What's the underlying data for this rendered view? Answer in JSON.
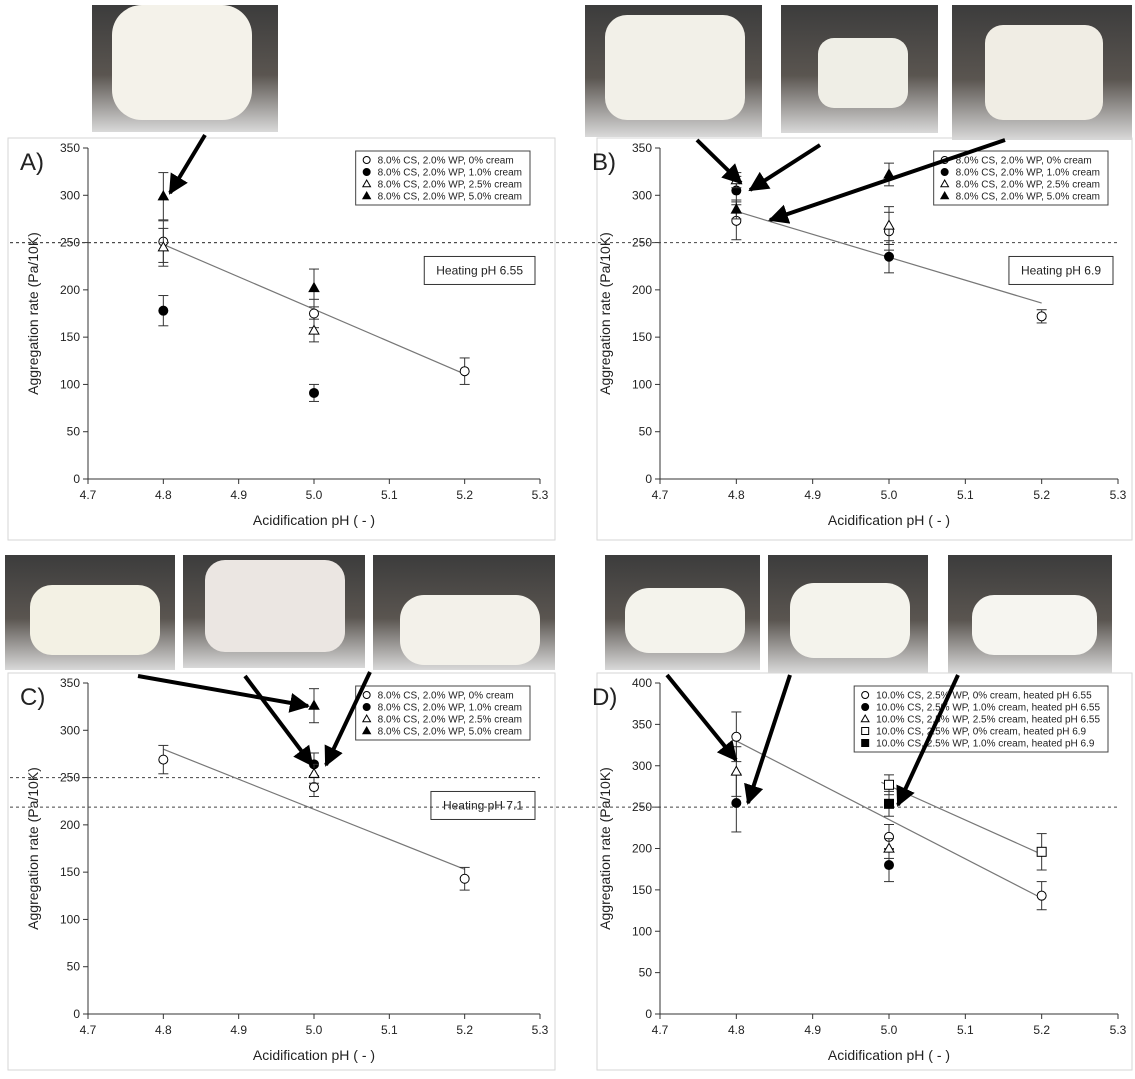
{
  "chart_data": [
    {
      "type": "scatter",
      "panel_label": "A)",
      "annotation": "Heating pH 6.55",
      "y_label": "Aggregation rate (Pa/10K)",
      "x_label": "Acidification pH ( - )",
      "x": [
        4.8,
        5.0,
        5.2
      ],
      "xlim": [
        4.7,
        5.3
      ],
      "xticks": [
        4.7,
        4.8,
        4.9,
        {
          "value": 5.0,
          "label": "5.0"
        },
        5.1,
        5.2,
        5.3
      ],
      "ylim": [
        0,
        350
      ],
      "yticks": [
        0,
        50,
        100,
        150,
        200,
        250,
        300,
        350
      ],
      "hline": 250,
      "legend": "upper right",
      "series": [
        {
          "name": "8.0% CS, 2.0% WP, 0% cream",
          "marker": "circle",
          "filled": false,
          "color": "#000000",
          "values": [
            251,
            175,
            114
          ],
          "errors": [
            22,
            15,
            14
          ]
        },
        {
          "name": "8.0% CS, 2.0% WP, 1.0% cream",
          "marker": "circle",
          "filled": true,
          "color": "#000000",
          "values": [
            178,
            91,
            null
          ],
          "errors": [
            16,
            9,
            null
          ]
        },
        {
          "name": "8.0% CS, 2.0% WP, 2.5% cream",
          "marker": "triangle",
          "filled": false,
          "color": "#000000",
          "values": [
            245,
            157,
            null
          ],
          "errors": [
            20,
            12,
            null
          ]
        },
        {
          "name": "8.0% CS, 2.0% WP, 5.0% cream",
          "marker": "triangle",
          "filled": true,
          "color": "#000000",
          "values": [
            299,
            202,
            null
          ],
          "errors": [
            25,
            20,
            null
          ]
        }
      ],
      "trendlines": [
        {
          "x": [
            4.8,
            5.2
          ],
          "y": [
            248,
            111
          ]
        }
      ]
    },
    {
      "type": "scatter",
      "panel_label": "B)",
      "annotation": "Heating pH 6.9",
      "y_label": "Aggregation rate (Pa/10K)",
      "x_label": "Acidification pH ( - )",
      "x": [
        4.8,
        5.0,
        5.2
      ],
      "xlim": [
        4.7,
        5.3
      ],
      "xticks": [
        4.7,
        4.8,
        4.9,
        {
          "value": 5.0,
          "label": "5.0"
        },
        5.1,
        5.2,
        5.3
      ],
      "ylim": [
        0,
        350
      ],
      "yticks": [
        0,
        50,
        100,
        150,
        200,
        250,
        300,
        350
      ],
      "hline": 250,
      "legend": "upper right",
      "series": [
        {
          "name": "8.0% CS, 2.0% WP, 0% cream",
          "marker": "circle",
          "filled": false,
          "color": "#000000",
          "values": [
            273,
            262,
            172
          ],
          "errors": [
            20,
            20,
            7
          ]
        },
        {
          "name": "8.0% CS, 2.0% WP, 1.0% cream",
          "marker": "circle",
          "filled": true,
          "color": "#000000",
          "values": [
            305,
            235,
            null
          ],
          "errors": [
            15,
            17,
            null
          ]
        },
        {
          "name": "8.0% CS, 2.0% WP, 2.5% cream",
          "marker": "triangle",
          "filled": false,
          "color": "#000000",
          "values": [
            316,
            268,
            null
          ],
          "errors": [
            8,
            20,
            null
          ]
        },
        {
          "name": "8.0% CS, 2.0% WP, 5.0% cream",
          "marker": "triangle",
          "filled": true,
          "color": "#000000",
          "values": [
            285,
            322,
            null
          ],
          "errors": [
            10,
            12,
            null
          ]
        }
      ],
      "trendlines": [
        {
          "x": [
            4.8,
            5.2
          ],
          "y": [
            283,
            186
          ]
        }
      ]
    },
    {
      "type": "scatter",
      "panel_label": "C)",
      "annotation": "Heating pH 7.1",
      "y_label": "Aggregation rate (Pa/10K)",
      "x_label": "Acidification pH ( - )",
      "x": [
        4.8,
        5.0,
        5.2
      ],
      "xlim": [
        4.7,
        5.3
      ],
      "xticks": [
        4.7,
        4.8,
        4.9,
        {
          "value": 5.0,
          "label": "5.0"
        },
        5.1,
        5.2,
        5.3
      ],
      "ylim": [
        0,
        350
      ],
      "yticks": [
        0,
        50,
        100,
        150,
        200,
        250,
        300,
        350
      ],
      "hline": 250,
      "legend": "upper right",
      "series": [
        {
          "name": "8.0% CS, 2.0% WP, 0% cream",
          "marker": "circle",
          "filled": false,
          "color": "#000000",
          "values": [
            269,
            240,
            143
          ],
          "errors": [
            15,
            10,
            12
          ]
        },
        {
          "name": "8.0% CS, 2.0% WP, 1.0% cream",
          "marker": "circle",
          "filled": true,
          "color": "#000000",
          "values": [
            null,
            264,
            null
          ],
          "errors": [
            null,
            12,
            null
          ]
        },
        {
          "name": "8.0% CS, 2.0% WP, 2.5% cream",
          "marker": "triangle",
          "filled": false,
          "color": "#000000",
          "values": [
            null,
            254,
            null
          ],
          "errors": [
            null,
            10,
            null
          ]
        },
        {
          "name": "8.0% CS, 2.0% WP, 5.0% cream",
          "marker": "triangle",
          "filled": true,
          "color": "#000000",
          "values": [
            null,
            326,
            null
          ],
          "errors": [
            null,
            18,
            null
          ]
        }
      ],
      "trendlines": [
        {
          "x": [
            4.8,
            5.2
          ],
          "y": [
            280,
            153
          ]
        }
      ]
    },
    {
      "type": "scatter",
      "panel_label": "D)",
      "y_label": "Aggregation rate (Pa/10K)",
      "x_label": "Acidification pH ( - )",
      "x": [
        4.8,
        5.0,
        5.2
      ],
      "xlim": [
        4.7,
        5.3
      ],
      "xticks": [
        4.7,
        4.8,
        4.9,
        {
          "value": 5.0,
          "label": "5.0"
        },
        5.1,
        5.2,
        5.3
      ],
      "ylim": [
        0,
        400
      ],
      "yticks": [
        0,
        50,
        100,
        150,
        200,
        250,
        300,
        350,
        400
      ],
      "hline": 250,
      "legend": "upper right",
      "series": [
        {
          "name": "10.0% CS, 2.5% WP, 0% cream, heated pH 6.55",
          "marker": "circle",
          "filled": false,
          "color": "#000000",
          "values": [
            335,
            214,
            143
          ],
          "errors": [
            30,
            15,
            17
          ]
        },
        {
          "name": "10.0% CS, 2.5% WP, 1.0% cream, heated pH 6.55",
          "marker": "circle",
          "filled": true,
          "color": "#000000",
          "values": [
            255,
            180,
            null
          ],
          "errors": [
            35,
            20,
            null
          ]
        },
        {
          "name": "10.0% CS, 2.5% WP, 2.5% cream, heated pH 6.55",
          "marker": "triangle",
          "filled": false,
          "color": "#000000",
          "values": [
            293,
            200,
            null
          ],
          "errors": [
            30,
            12,
            null
          ]
        },
        {
          "name": "10.0% CS, 2.5% WP, 0% cream, heated pH 6.9",
          "marker": "square",
          "filled": false,
          "color": "#000000",
          "values": [
            null,
            277,
            196
          ],
          "errors": [
            null,
            12,
            22
          ]
        },
        {
          "name": "10.0% CS, 2.5% WP, 1.0% cream, heated pH 6.9",
          "marker": "square",
          "filled": true,
          "color": "#000000",
          "values": [
            null,
            254,
            null
          ],
          "errors": [
            null,
            15,
            null
          ]
        }
      ],
      "trendlines": [
        {
          "x": [
            4.8,
            5.2
          ],
          "y": [
            330,
            140
          ]
        },
        {
          "x": [
            4.99,
            5.2
          ],
          "y": [
            280,
            193
          ]
        }
      ]
    }
  ]
}
